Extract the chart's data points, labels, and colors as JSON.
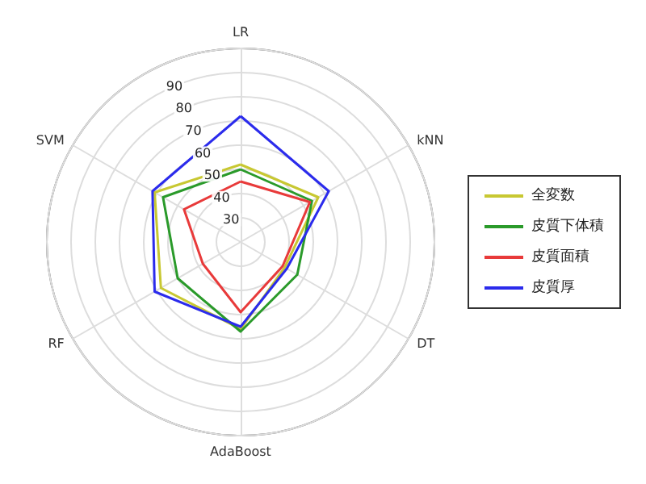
{
  "chart_data": {
    "type": "radar",
    "categories": [
      "LR",
      "kNN",
      "DT",
      "AdaBoost",
      "RF",
      "SVM"
    ],
    "ylim": [
      20,
      100
    ],
    "yticks": [
      30,
      40,
      50,
      60,
      70,
      80,
      90
    ],
    "grid": true,
    "legend": "right",
    "series": [
      {
        "name": "全変数",
        "color": "#c8c832",
        "values": [
          52,
          57,
          41,
          56,
          58,
          61
        ]
      },
      {
        "name": "皮質下体積",
        "color": "#2a9a2a",
        "values": [
          50,
          54,
          47,
          57,
          50,
          57
        ]
      },
      {
        "name": "皮質面積",
        "color": "#e83a3a",
        "values": [
          45,
          53,
          40,
          49,
          38,
          47
        ]
      },
      {
        "name": "皮質厚",
        "color": "#2b2bec",
        "values": [
          72,
          62,
          42,
          55,
          61,
          62
        ]
      }
    ]
  }
}
